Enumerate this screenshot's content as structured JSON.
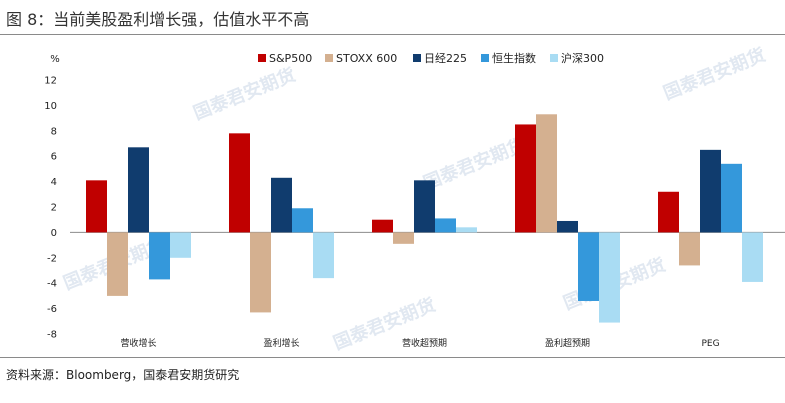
{
  "figure": {
    "title": "图 8：当前美股盈利增长强，估值水平不高",
    "source": "资料来源：Bloomberg，国泰君安期货研究",
    "watermark": "国泰君安期货"
  },
  "chart_data": {
    "type": "bar",
    "title": "",
    "ylabel": "%",
    "xlabel": "",
    "ylim": [
      -8,
      12
    ],
    "yticks": [
      -8,
      -6,
      -4,
      -2,
      0,
      2,
      4,
      6,
      8,
      10,
      12
    ],
    "grid": false,
    "legend_position": "top",
    "categories": [
      "营收增长",
      "盈利增长",
      "营收超预期",
      "盈利超预期",
      "PEG"
    ],
    "series": [
      {
        "name": "S&P500",
        "color": "#c00000",
        "values": [
          4.1,
          7.8,
          1.0,
          8.5,
          3.2
        ]
      },
      {
        "name": "STOXX 600",
        "color": "#d4b090",
        "values": [
          -5.0,
          -6.3,
          -0.9,
          9.3,
          -2.6
        ]
      },
      {
        "name": "日经225",
        "color": "#103c6e",
        "values": [
          6.7,
          4.3,
          4.1,
          0.9,
          6.5
        ]
      },
      {
        "name": "恒生指数",
        "color": "#3498db",
        "values": [
          -3.7,
          1.9,
          1.1,
          -5.4,
          5.4
        ]
      },
      {
        "name": "沪深300",
        "color": "#a9dcf3",
        "values": [
          -2.0,
          -3.6,
          0.4,
          -7.1,
          -3.9
        ]
      }
    ]
  }
}
